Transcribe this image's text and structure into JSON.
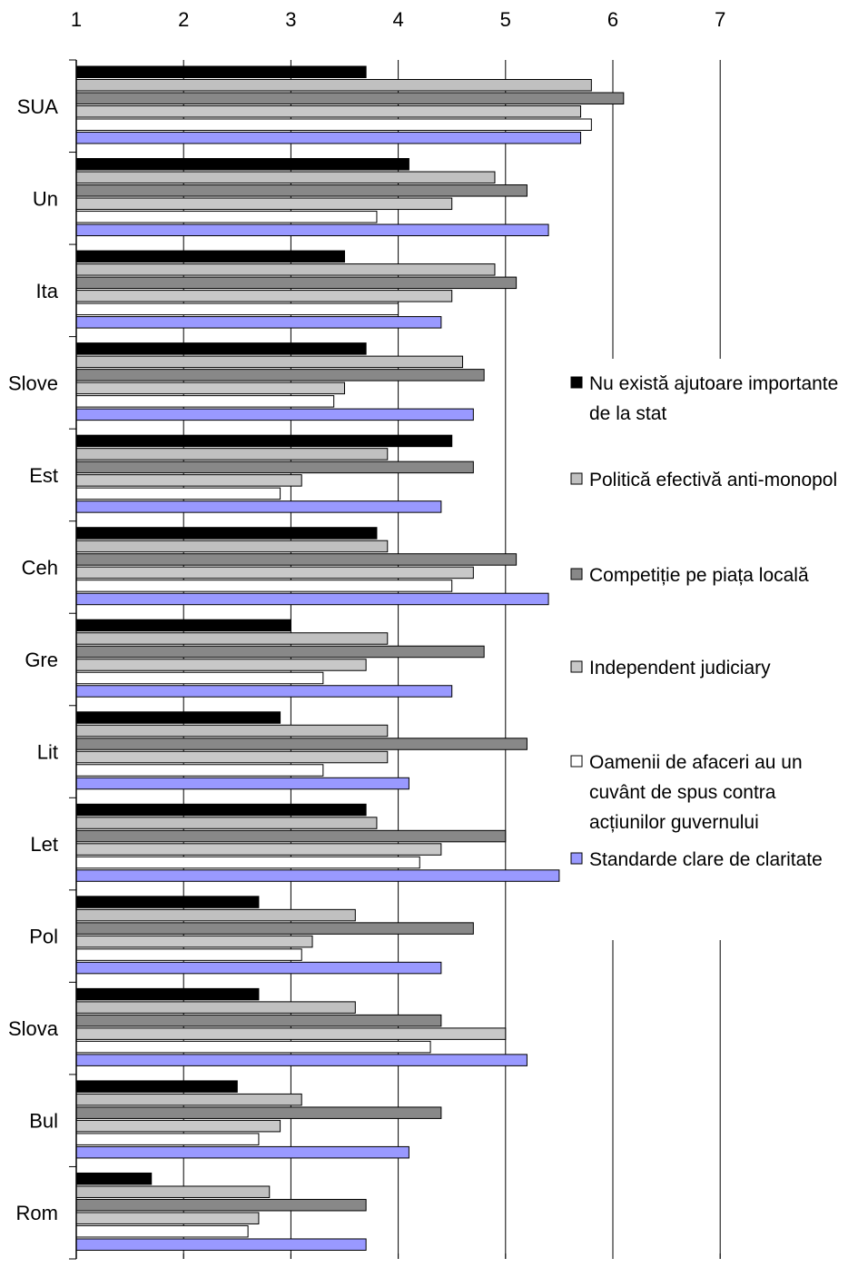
{
  "chart_data": {
    "type": "bar",
    "orientation": "horizontal",
    "xlim": [
      1,
      7
    ],
    "x_ticks": [
      "1",
      "2",
      "3",
      "4",
      "5",
      "6",
      "7"
    ],
    "grid": "vertical",
    "legend_position": "right",
    "categories": [
      "SUA",
      "Un",
      "Ita",
      "Slove",
      "Est",
      "Ceh",
      "Gre",
      "Lit",
      "Let",
      "Pol",
      "Slova",
      "Bul",
      "Rom"
    ],
    "series": [
      {
        "name": "Nu există ajutoare importante de la stat",
        "legend_lines": [
          "Nu există ajutoare importante",
          "de la stat"
        ],
        "color": "#000000",
        "values": [
          3.7,
          4.1,
          3.5,
          3.7,
          4.5,
          3.8,
          3.0,
          2.9,
          3.7,
          2.7,
          2.7,
          2.5,
          1.7
        ]
      },
      {
        "name": "Politică efectivă anti-monopol",
        "legend_lines": [
          "Politică efectivă anti-monopol"
        ],
        "color": "#c0c0c0",
        "values": [
          5.8,
          4.9,
          4.9,
          4.6,
          3.9,
          3.9,
          3.9,
          3.9,
          3.8,
          3.6,
          3.6,
          3.1,
          2.8
        ]
      },
      {
        "name": "Competiție pe piața locală",
        "legend_lines": [
          "Competiție pe piața locală"
        ],
        "color": "#888888",
        "values": [
          6.1,
          5.2,
          5.1,
          4.8,
          4.7,
          5.1,
          4.8,
          5.2,
          5.0,
          4.7,
          4.4,
          4.4,
          3.7
        ]
      },
      {
        "name": "Independent judiciary",
        "legend_lines": [
          "Independent judiciary"
        ],
        "color": "#c8c8c8",
        "values": [
          5.7,
          4.5,
          4.5,
          3.5,
          3.1,
          4.7,
          3.7,
          3.9,
          4.4,
          3.2,
          5.0,
          2.9,
          2.7
        ]
      },
      {
        "name": "Oamenii de afaceri au un cuvânt de spus contra acțiunilor guvernului",
        "legend_lines": [
          "Oamenii de afaceri au un",
          "cuvânt de spus contra",
          "acțiunilor guvernului"
        ],
        "color": "#ffffff",
        "values": [
          5.8,
          3.8,
          4.0,
          3.4,
          2.9,
          4.5,
          3.3,
          3.3,
          4.2,
          3.1,
          4.3,
          2.7,
          2.6
        ]
      },
      {
        "name": "Standarde clare de claritate",
        "legend_lines": [
          "Standarde clare de claritate"
        ],
        "color": "#9999ff",
        "values": [
          5.7,
          5.4,
          4.4,
          4.7,
          4.4,
          5.4,
          4.5,
          4.1,
          5.5,
          4.4,
          5.2,
          4.1,
          3.7
        ]
      }
    ]
  }
}
